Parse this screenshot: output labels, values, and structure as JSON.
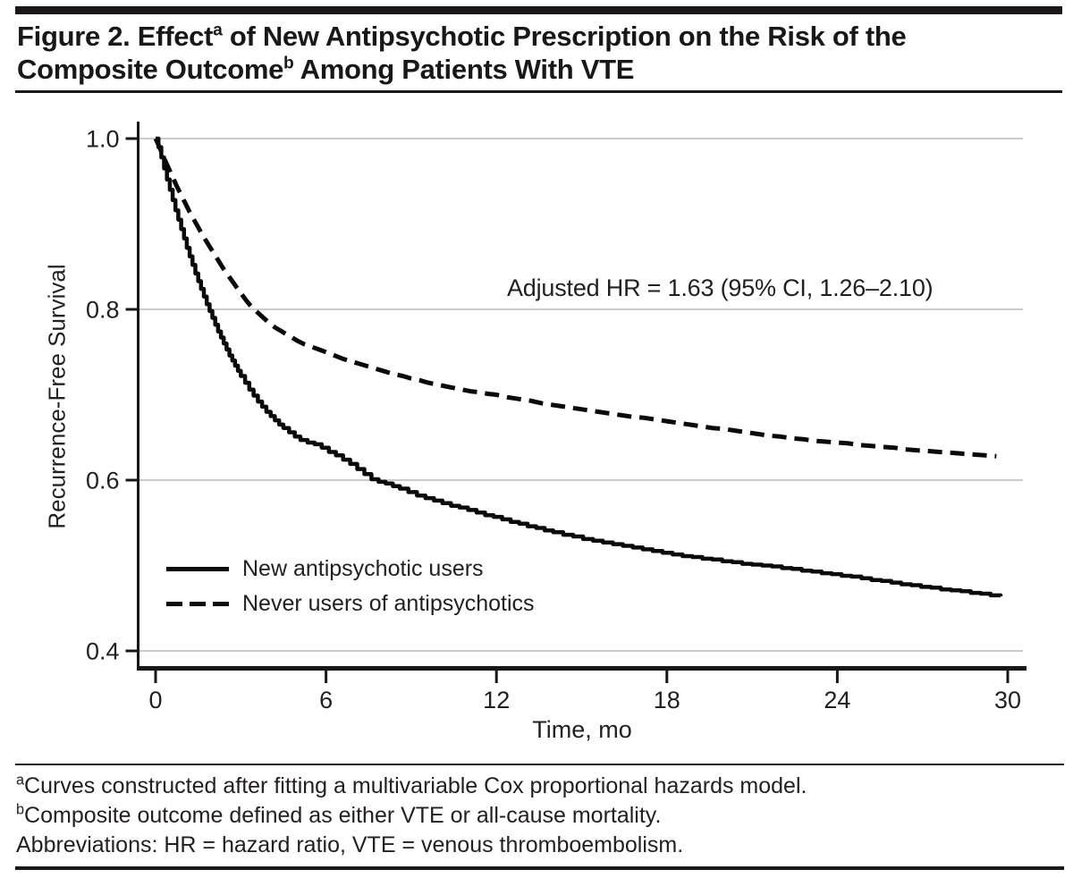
{
  "header": {
    "title_line1": {
      "pre": "Figure 2. Effect",
      "sup": "a",
      "post": " of New Antipsychotic Prescription on the Risk of the"
    },
    "title_line2": {
      "pre": "Composite Outcome",
      "sup": "b",
      "post": " Among Patients With VTE"
    }
  },
  "chart_data": {
    "type": "line",
    "subtype": "kaplan-meier-survival",
    "xlabel": "Time, mo",
    "ylabel": "Recurrence-Free Survival",
    "xlim": [
      0,
      30
    ],
    "ylim": [
      0.4,
      1.0
    ],
    "xticks": [
      0,
      6,
      12,
      18,
      24,
      30
    ],
    "yticks": [
      {
        "value": 1.0,
        "label": "1.0"
      },
      {
        "value": 0.8,
        "label": "0.8"
      },
      {
        "value": 0.6,
        "label": "0.6"
      },
      {
        "value": 0.4,
        "label": "0.4"
      }
    ],
    "grid": true,
    "legend_position": "inside lower-left",
    "annotation": {
      "text": "Adjusted HR = 1.63 (95% CI, 1.26–2.10)"
    },
    "series": [
      {
        "name": "New antipsychotic users",
        "line_style": "solid",
        "color": "#0a0a0a",
        "points": [
          [
            0,
            1.0
          ],
          [
            0.1,
            0.99
          ],
          [
            0.2,
            0.978
          ],
          [
            0.3,
            0.965
          ],
          [
            0.4,
            0.952
          ],
          [
            0.5,
            0.94
          ],
          [
            0.6,
            0.928
          ],
          [
            0.7,
            0.916
          ],
          [
            0.8,
            0.905
          ],
          [
            0.9,
            0.894
          ],
          [
            1.0,
            0.883
          ],
          [
            1.1,
            0.872
          ],
          [
            1.2,
            0.862
          ],
          [
            1.3,
            0.852
          ],
          [
            1.4,
            0.842
          ],
          [
            1.5,
            0.833
          ],
          [
            1.6,
            0.824
          ],
          [
            1.7,
            0.815
          ],
          [
            1.8,
            0.806
          ],
          [
            1.9,
            0.798
          ],
          [
            2.0,
            0.79
          ],
          [
            2.1,
            0.782
          ],
          [
            2.2,
            0.774
          ],
          [
            2.3,
            0.767
          ],
          [
            2.4,
            0.76
          ],
          [
            2.5,
            0.753
          ],
          [
            2.6,
            0.746
          ],
          [
            2.7,
            0.74
          ],
          [
            2.8,
            0.734
          ],
          [
            2.9,
            0.728
          ],
          [
            3.0,
            0.722
          ],
          [
            3.15,
            0.714
          ],
          [
            3.3,
            0.706
          ],
          [
            3.45,
            0.699
          ],
          [
            3.6,
            0.692
          ],
          [
            3.75,
            0.686
          ],
          [
            3.9,
            0.68
          ],
          [
            4.05,
            0.675
          ],
          [
            4.2,
            0.67
          ],
          [
            4.35,
            0.665
          ],
          [
            4.5,
            0.661
          ],
          [
            4.7,
            0.656
          ],
          [
            4.9,
            0.651
          ],
          [
            5.1,
            0.647
          ],
          [
            5.35,
            0.644
          ],
          [
            5.6,
            0.642
          ],
          [
            5.85,
            0.638
          ],
          [
            6.1,
            0.633
          ],
          [
            6.35,
            0.629
          ],
          [
            6.6,
            0.624
          ],
          [
            6.85,
            0.619
          ],
          [
            7.1,
            0.613
          ],
          [
            7.35,
            0.607
          ],
          [
            7.6,
            0.601
          ],
          [
            7.85,
            0.598
          ],
          [
            8.1,
            0.596
          ],
          [
            8.35,
            0.593
          ],
          [
            8.6,
            0.59
          ],
          [
            8.9,
            0.586
          ],
          [
            9.2,
            0.582
          ],
          [
            9.5,
            0.579
          ],
          [
            9.8,
            0.576
          ],
          [
            10.1,
            0.573
          ],
          [
            10.4,
            0.57
          ],
          [
            10.7,
            0.568
          ],
          [
            11.0,
            0.565
          ],
          [
            11.3,
            0.562
          ],
          [
            11.6,
            0.559
          ],
          [
            11.9,
            0.557
          ],
          [
            12.2,
            0.554
          ],
          [
            12.5,
            0.551
          ],
          [
            12.8,
            0.549
          ],
          [
            13.1,
            0.546
          ],
          [
            13.4,
            0.544
          ],
          [
            13.7,
            0.541
          ],
          [
            14.0,
            0.539
          ],
          [
            14.35,
            0.536
          ],
          [
            14.7,
            0.534
          ],
          [
            15.05,
            0.531
          ],
          [
            15.4,
            0.529
          ],
          [
            15.75,
            0.527
          ],
          [
            16.1,
            0.525
          ],
          [
            16.45,
            0.523
          ],
          [
            16.8,
            0.521
          ],
          [
            17.15,
            0.519
          ],
          [
            17.5,
            0.517
          ],
          [
            17.85,
            0.515
          ],
          [
            18.2,
            0.513
          ],
          [
            18.55,
            0.511
          ],
          [
            18.9,
            0.51
          ],
          [
            19.25,
            0.508
          ],
          [
            19.6,
            0.507
          ],
          [
            19.95,
            0.505
          ],
          [
            20.3,
            0.504
          ],
          [
            20.65,
            0.502
          ],
          [
            21.0,
            0.501
          ],
          [
            21.35,
            0.5
          ],
          [
            21.7,
            0.499
          ],
          [
            22.05,
            0.497
          ],
          [
            22.4,
            0.496
          ],
          [
            22.75,
            0.494
          ],
          [
            23.1,
            0.493
          ],
          [
            23.45,
            0.491
          ],
          [
            23.8,
            0.49
          ],
          [
            24.15,
            0.488
          ],
          [
            24.5,
            0.487
          ],
          [
            24.85,
            0.485
          ],
          [
            25.2,
            0.483
          ],
          [
            25.55,
            0.482
          ],
          [
            25.9,
            0.48
          ],
          [
            26.25,
            0.478
          ],
          [
            26.6,
            0.477
          ],
          [
            26.95,
            0.475
          ],
          [
            27.3,
            0.474
          ],
          [
            27.65,
            0.472
          ],
          [
            28.0,
            0.471
          ],
          [
            28.35,
            0.47
          ],
          [
            28.7,
            0.468
          ],
          [
            29.05,
            0.467
          ],
          [
            29.4,
            0.465
          ],
          [
            29.75,
            0.464
          ]
        ]
      },
      {
        "name": "Never users of antipsychotics",
        "line_style": "dashed",
        "color": "#0a0a0a",
        "points": [
          [
            0,
            1.0
          ],
          [
            0.15,
            0.989
          ],
          [
            0.3,
            0.977
          ],
          [
            0.45,
            0.966
          ],
          [
            0.6,
            0.955
          ],
          [
            0.75,
            0.944
          ],
          [
            0.9,
            0.934
          ],
          [
            1.05,
            0.924
          ],
          [
            1.2,
            0.914
          ],
          [
            1.35,
            0.905
          ],
          [
            1.5,
            0.896
          ],
          [
            1.65,
            0.887
          ],
          [
            1.8,
            0.879
          ],
          [
            1.95,
            0.871
          ],
          [
            2.1,
            0.863
          ],
          [
            2.25,
            0.855
          ],
          [
            2.4,
            0.847
          ],
          [
            2.55,
            0.84
          ],
          [
            2.7,
            0.833
          ],
          [
            2.85,
            0.826
          ],
          [
            3.0,
            0.819
          ],
          [
            3.2,
            0.81
          ],
          [
            3.4,
            0.802
          ],
          [
            3.6,
            0.796
          ],
          [
            3.8,
            0.79
          ],
          [
            4.0,
            0.784
          ],
          [
            4.2,
            0.779
          ],
          [
            4.4,
            0.775
          ],
          [
            4.6,
            0.771
          ],
          [
            4.8,
            0.767
          ],
          [
            5.0,
            0.763
          ],
          [
            5.25,
            0.759
          ],
          [
            5.5,
            0.756
          ],
          [
            5.75,
            0.753
          ],
          [
            6.0,
            0.75
          ],
          [
            6.3,
            0.746
          ],
          [
            6.6,
            0.742
          ],
          [
            6.9,
            0.739
          ],
          [
            7.2,
            0.736
          ],
          [
            7.5,
            0.733
          ],
          [
            7.8,
            0.73
          ],
          [
            8.1,
            0.727
          ],
          [
            8.4,
            0.724
          ],
          [
            8.7,
            0.722
          ],
          [
            9.0,
            0.719
          ],
          [
            9.3,
            0.717
          ],
          [
            9.6,
            0.714
          ],
          [
            9.9,
            0.712
          ],
          [
            10.2,
            0.71
          ],
          [
            10.5,
            0.708
          ],
          [
            10.8,
            0.706
          ],
          [
            11.1,
            0.704
          ],
          [
            11.4,
            0.703
          ],
          [
            11.7,
            0.701
          ],
          [
            12.0,
            0.7
          ],
          [
            12.4,
            0.697
          ],
          [
            12.8,
            0.695
          ],
          [
            13.2,
            0.693
          ],
          [
            13.6,
            0.69
          ],
          [
            14.0,
            0.688
          ],
          [
            14.4,
            0.686
          ],
          [
            14.8,
            0.684
          ],
          [
            15.2,
            0.682
          ],
          [
            15.6,
            0.68
          ],
          [
            16.0,
            0.678
          ],
          [
            16.4,
            0.676
          ],
          [
            16.8,
            0.674
          ],
          [
            17.2,
            0.673
          ],
          [
            17.6,
            0.671
          ],
          [
            18.0,
            0.669
          ],
          [
            18.4,
            0.667
          ],
          [
            18.8,
            0.665
          ],
          [
            19.2,
            0.663
          ],
          [
            19.6,
            0.661
          ],
          [
            20.0,
            0.66
          ],
          [
            20.4,
            0.658
          ],
          [
            20.8,
            0.656
          ],
          [
            21.2,
            0.654
          ],
          [
            21.6,
            0.652
          ],
          [
            22.0,
            0.651
          ],
          [
            22.4,
            0.649
          ],
          [
            22.8,
            0.648
          ],
          [
            23.2,
            0.646
          ],
          [
            23.6,
            0.645
          ],
          [
            24.0,
            0.644
          ],
          [
            24.4,
            0.643
          ],
          [
            24.8,
            0.641
          ],
          [
            25.2,
            0.64
          ],
          [
            25.6,
            0.639
          ],
          [
            26.0,
            0.638
          ],
          [
            26.4,
            0.636
          ],
          [
            26.8,
            0.635
          ],
          [
            27.2,
            0.634
          ],
          [
            27.6,
            0.633
          ],
          [
            28.0,
            0.632
          ],
          [
            28.4,
            0.631
          ],
          [
            28.8,
            0.63
          ],
          [
            29.2,
            0.629
          ],
          [
            29.6,
            0.628
          ]
        ]
      }
    ]
  },
  "footnotes": {
    "a": {
      "sup": "a",
      "text": "Curves constructed after fitting a multivariable Cox proportional hazards model."
    },
    "b": {
      "sup": "b",
      "text": "Composite outcome defined as either VTE or all-cause mortality."
    },
    "abbreviations": "Abbreviations: HR = hazard ratio, VTE = venous thromboembolism."
  },
  "colors": {
    "text": "#231f20",
    "grid": "#cbcbcb",
    "axis": "#1a1718",
    "curve": "#0a0a0a"
  }
}
